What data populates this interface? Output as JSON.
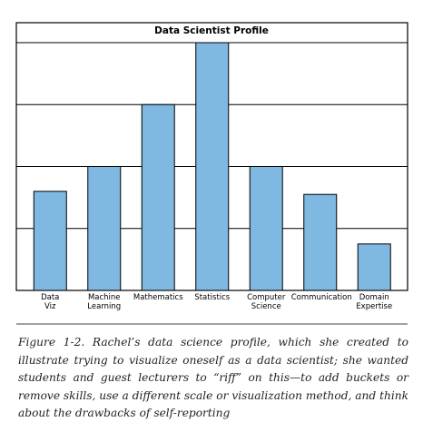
{
  "chart_data": {
    "type": "bar",
    "title": "Data Scientist Profile",
    "categories": [
      "Data\nViz",
      "Machine\nLearning",
      "Mathematics",
      "Statistics",
      "Computer\nScience",
      "Communication",
      "Domain\nExpertise"
    ],
    "values": [
      1.6,
      2,
      3,
      4,
      2,
      1.55,
      0.75
    ],
    "color": "#7fb8e0",
    "ylim": [
      0,
      4
    ],
    "yticks": [
      0,
      1,
      2,
      3,
      4
    ],
    "grid": true
  },
  "caption": "Figure 1-2. Rachel’s data science profile, which she created to illustrate trying to visualize oneself as a data scientist; she wanted students and guest lecturers to “riff” on this—to add buckets or remove skills, use a different scale or visualization method, and think about the drawbacks of self-reporting"
}
